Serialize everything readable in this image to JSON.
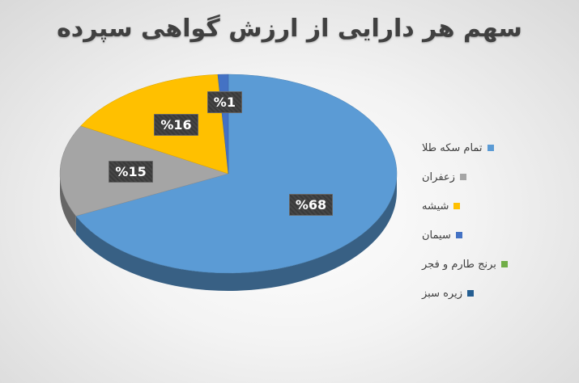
{
  "chart_data": {
    "type": "pie",
    "title": "سهم هر دارایی از ارزش گواهی سپرده",
    "categories": [
      "تمام سکه طلا",
      "زعفران",
      "شیشه",
      "سیمان",
      "برنج طارم و فجر",
      "زیره سبز"
    ],
    "values": [
      68,
      15,
      16,
      1,
      0,
      0
    ],
    "data_labels": [
      "%68",
      "%15",
      "%16",
      "%1",
      "",
      ""
    ],
    "colors": [
      "#5b9bd5",
      "#a5a5a5",
      "#ffc000",
      "#4472c4",
      "#70ad47",
      "#255e91"
    ],
    "legend_position": "right",
    "style": "3d"
  }
}
